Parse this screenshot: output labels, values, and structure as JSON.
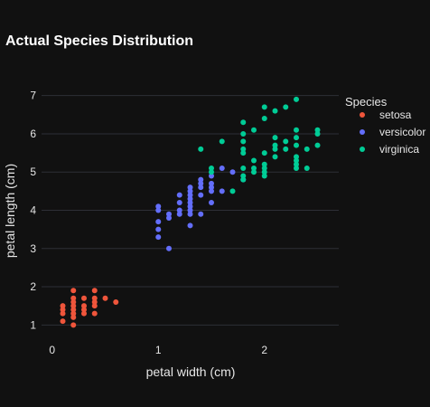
{
  "chart_data": {
    "type": "scatter",
    "title": "Actual Species Distribution",
    "xlabel": "petal width (cm)",
    "ylabel": "petal length (cm)",
    "xlim": [
      -0.1,
      2.7
    ],
    "ylim": [
      0.7,
      7.3
    ],
    "xticks": [
      0,
      1,
      2
    ],
    "yticks": [
      1,
      2,
      3,
      4,
      5,
      6,
      7
    ],
    "grid": true,
    "legend": {
      "title": "Species",
      "placement": "right"
    },
    "series": [
      {
        "name": "setosa",
        "color": "#ef553b",
        "points": [
          [
            0.1,
            1.1
          ],
          [
            0.1,
            1.4
          ],
          [
            0.1,
            1.5
          ],
          [
            0.1,
            1.3
          ],
          [
            0.2,
            1.0
          ],
          [
            0.2,
            1.2
          ],
          [
            0.2,
            1.3
          ],
          [
            0.2,
            1.4
          ],
          [
            0.2,
            1.5
          ],
          [
            0.2,
            1.6
          ],
          [
            0.2,
            1.7
          ],
          [
            0.2,
            1.9
          ],
          [
            0.3,
            1.3
          ],
          [
            0.3,
            1.4
          ],
          [
            0.3,
            1.5
          ],
          [
            0.3,
            1.7
          ],
          [
            0.4,
            1.3
          ],
          [
            0.4,
            1.5
          ],
          [
            0.4,
            1.6
          ],
          [
            0.4,
            1.7
          ],
          [
            0.4,
            1.9
          ],
          [
            0.5,
            1.7
          ],
          [
            0.6,
            1.6
          ]
        ]
      },
      {
        "name": "versicolor",
        "color": "#636efa",
        "points": [
          [
            1.0,
            3.3
          ],
          [
            1.0,
            3.5
          ],
          [
            1.0,
            3.7
          ],
          [
            1.0,
            4.0
          ],
          [
            1.0,
            4.1
          ],
          [
            1.1,
            3.0
          ],
          [
            1.1,
            3.8
          ],
          [
            1.1,
            3.9
          ],
          [
            1.2,
            3.9
          ],
          [
            1.2,
            4.0
          ],
          [
            1.2,
            4.2
          ],
          [
            1.2,
            4.4
          ],
          [
            1.3,
            3.6
          ],
          [
            1.3,
            3.9
          ],
          [
            1.3,
            4.0
          ],
          [
            1.3,
            4.1
          ],
          [
            1.3,
            4.2
          ],
          [
            1.3,
            4.3
          ],
          [
            1.3,
            4.4
          ],
          [
            1.3,
            4.5
          ],
          [
            1.3,
            4.6
          ],
          [
            1.4,
            3.9
          ],
          [
            1.4,
            4.4
          ],
          [
            1.4,
            4.6
          ],
          [
            1.4,
            4.7
          ],
          [
            1.4,
            4.8
          ],
          [
            1.5,
            4.2
          ],
          [
            1.5,
            4.5
          ],
          [
            1.5,
            4.6
          ],
          [
            1.5,
            4.7
          ],
          [
            1.5,
            4.9
          ],
          [
            1.6,
            4.5
          ],
          [
            1.6,
            5.1
          ],
          [
            1.7,
            5.0
          ],
          [
            1.8,
            4.8
          ]
        ]
      },
      {
        "name": "virginica",
        "color": "#00cc96",
        "points": [
          [
            1.4,
            5.6
          ],
          [
            1.5,
            5.0
          ],
          [
            1.5,
            5.1
          ],
          [
            1.6,
            5.8
          ],
          [
            1.7,
            4.5
          ],
          [
            1.8,
            4.8
          ],
          [
            1.8,
            4.9
          ],
          [
            1.8,
            5.1
          ],
          [
            1.8,
            5.5
          ],
          [
            1.8,
            5.6
          ],
          [
            1.8,
            5.8
          ],
          [
            1.8,
            6.0
          ],
          [
            1.8,
            6.3
          ],
          [
            1.9,
            5.0
          ],
          [
            1.9,
            5.1
          ],
          [
            1.9,
            5.3
          ],
          [
            1.9,
            6.1
          ],
          [
            2.0,
            4.9
          ],
          [
            2.0,
            5.0
          ],
          [
            2.0,
            5.1
          ],
          [
            2.0,
            5.2
          ],
          [
            2.0,
            5.5
          ],
          [
            2.0,
            6.4
          ],
          [
            2.0,
            6.7
          ],
          [
            2.1,
            5.4
          ],
          [
            2.1,
            5.6
          ],
          [
            2.1,
            5.7
          ],
          [
            2.1,
            5.9
          ],
          [
            2.1,
            6.6
          ],
          [
            2.2,
            5.6
          ],
          [
            2.2,
            5.8
          ],
          [
            2.2,
            6.7
          ],
          [
            2.3,
            5.1
          ],
          [
            2.3,
            5.2
          ],
          [
            2.3,
            5.3
          ],
          [
            2.3,
            5.4
          ],
          [
            2.3,
            5.7
          ],
          [
            2.3,
            5.9
          ],
          [
            2.3,
            6.1
          ],
          [
            2.3,
            6.9
          ],
          [
            2.4,
            5.1
          ],
          [
            2.4,
            5.6
          ],
          [
            2.5,
            5.7
          ],
          [
            2.5,
            6.0
          ],
          [
            2.5,
            6.1
          ]
        ]
      }
    ]
  }
}
